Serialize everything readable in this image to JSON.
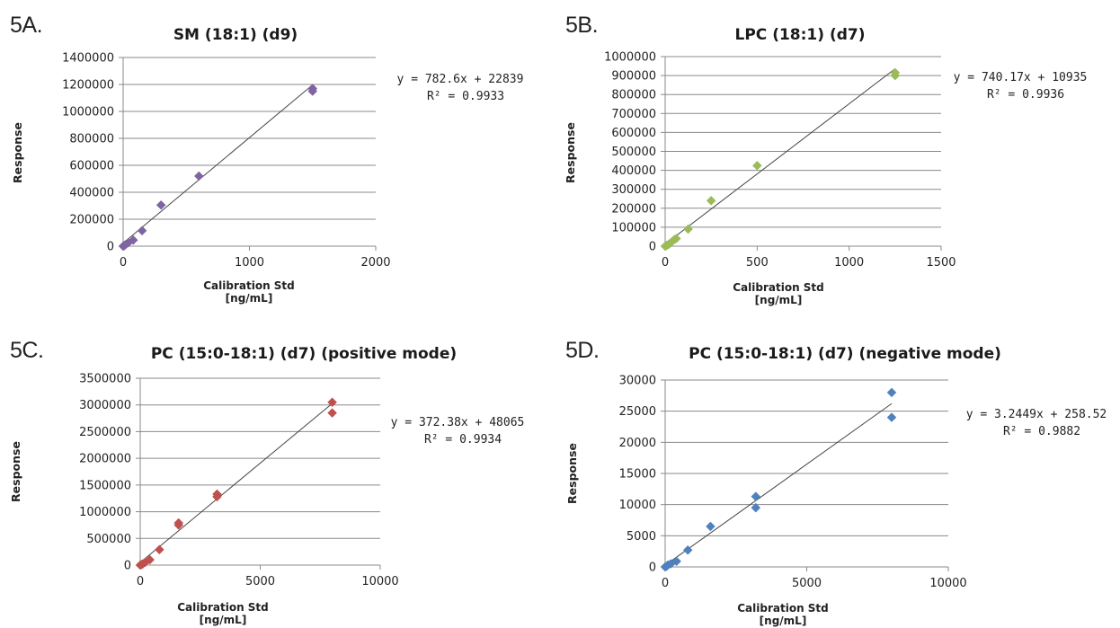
{
  "chart_data": [
    {
      "id": "5A",
      "panel_label": "5A.",
      "type": "scatter",
      "title": "SM (18:1) (d9)",
      "xlabel": [
        "Calibration Std",
        "[ng/mL]"
      ],
      "ylabel": "Response",
      "xlim": [
        0,
        2000
      ],
      "ylim": [
        0,
        1400000
      ],
      "xticks": [
        0,
        1000,
        2000
      ],
      "yticks": [
        0,
        200000,
        400000,
        600000,
        800000,
        1000000,
        1200000,
        1400000
      ],
      "grid": "horizontal",
      "color": "#8064a2",
      "points": [
        [
          0,
          0
        ],
        [
          5,
          2000
        ],
        [
          10,
          5000
        ],
        [
          20,
          12000
        ],
        [
          40,
          25000
        ],
        [
          80,
          45000
        ],
        [
          150,
          115000
        ],
        [
          300,
          305000
        ],
        [
          600,
          520000
        ],
        [
          1500,
          1150000
        ],
        [
          1500,
          1170000
        ]
      ],
      "trendline": {
        "slope": 782.6,
        "intercept": 22839,
        "x_end": 1500
      },
      "equation": "y = 782.6x + 22839",
      "r2": "R² = 0.9933"
    },
    {
      "id": "5B",
      "panel_label": "5B.",
      "type": "scatter",
      "title": "LPC (18:1) (d7)",
      "xlabel": [
        "Calibration Std",
        "[ng/mL]"
      ],
      "ylabel": "Response",
      "xlim": [
        0,
        1500
      ],
      "ylim": [
        0,
        1000000
      ],
      "xticks": [
        0,
        500,
        1000,
        1500
      ],
      "yticks": [
        0,
        100000,
        200000,
        300000,
        400000,
        500000,
        600000,
        700000,
        800000,
        900000,
        1000000
      ],
      "grid": "horizontal",
      "color": "#9bbb59",
      "points": [
        [
          0,
          0
        ],
        [
          5,
          2000
        ],
        [
          10,
          5000
        ],
        [
          20,
          10000
        ],
        [
          30,
          18000
        ],
        [
          50,
          35000
        ],
        [
          60,
          40000
        ],
        [
          125,
          90000
        ],
        [
          250,
          240000
        ],
        [
          500,
          425000
        ],
        [
          1250,
          900000
        ],
        [
          1250,
          915000
        ]
      ],
      "trendline": {
        "slope": 740.17,
        "intercept": 10935,
        "x_end": 1250
      },
      "equation": "y = 740.17x + 10935",
      "r2": "R² = 0.9936"
    },
    {
      "id": "5C",
      "panel_label": "5C.",
      "type": "scatter",
      "title": "PC (15:0-18:1) (d7) (positive mode)",
      "xlabel": [
        "Calibration Std",
        "[ng/mL]"
      ],
      "ylabel": "Response",
      "xlim": [
        0,
        10000
      ],
      "ylim": [
        0,
        3500000
      ],
      "xticks": [
        0,
        5000,
        10000
      ],
      "yticks": [
        0,
        500000,
        1000000,
        1500000,
        2000000,
        2500000,
        3000000,
        3500000
      ],
      "grid": "horizontal",
      "color": "#c0504d",
      "points": [
        [
          0,
          0
        ],
        [
          50,
          10000
        ],
        [
          100,
          20000
        ],
        [
          200,
          50000
        ],
        [
          400,
          100000
        ],
        [
          800,
          290000
        ],
        [
          1600,
          750000
        ],
        [
          1600,
          790000
        ],
        [
          3200,
          1280000
        ],
        [
          3200,
          1330000
        ],
        [
          8000,
          2850000
        ],
        [
          8000,
          3050000
        ]
      ],
      "trendline": {
        "slope": 372.38,
        "intercept": 48065,
        "x_end": 8000
      },
      "equation": "y = 372.38x + 48065",
      "r2": "R² = 0.9934"
    },
    {
      "id": "5D",
      "panel_label": "5D.",
      "type": "scatter",
      "title": "PC (15:0-18:1) (d7) (negative mode)",
      "xlabel": [
        "Calibration Std",
        "[ng/mL]"
      ],
      "ylabel": "Response",
      "xlim": [
        0,
        10000
      ],
      "ylim": [
        0,
        30000
      ],
      "xticks": [
        0,
        5000,
        10000
      ],
      "yticks": [
        0,
        5000,
        10000,
        15000,
        20000,
        25000,
        30000
      ],
      "grid": "horizontal",
      "color": "#4f81bd",
      "points": [
        [
          0,
          0
        ],
        [
          50,
          100
        ],
        [
          100,
          300
        ],
        [
          200,
          500
        ],
        [
          400,
          900
        ],
        [
          800,
          2700
        ],
        [
          1600,
          6500
        ],
        [
          3200,
          9500
        ],
        [
          3200,
          11300
        ],
        [
          8000,
          24000
        ],
        [
          8000,
          28000
        ]
      ],
      "trendline": {
        "slope": 3.2449,
        "intercept": 258.52,
        "x_end": 8000
      },
      "equation": "y = 3.2449x + 258.52",
      "r2": "R² = 0.9882"
    }
  ]
}
